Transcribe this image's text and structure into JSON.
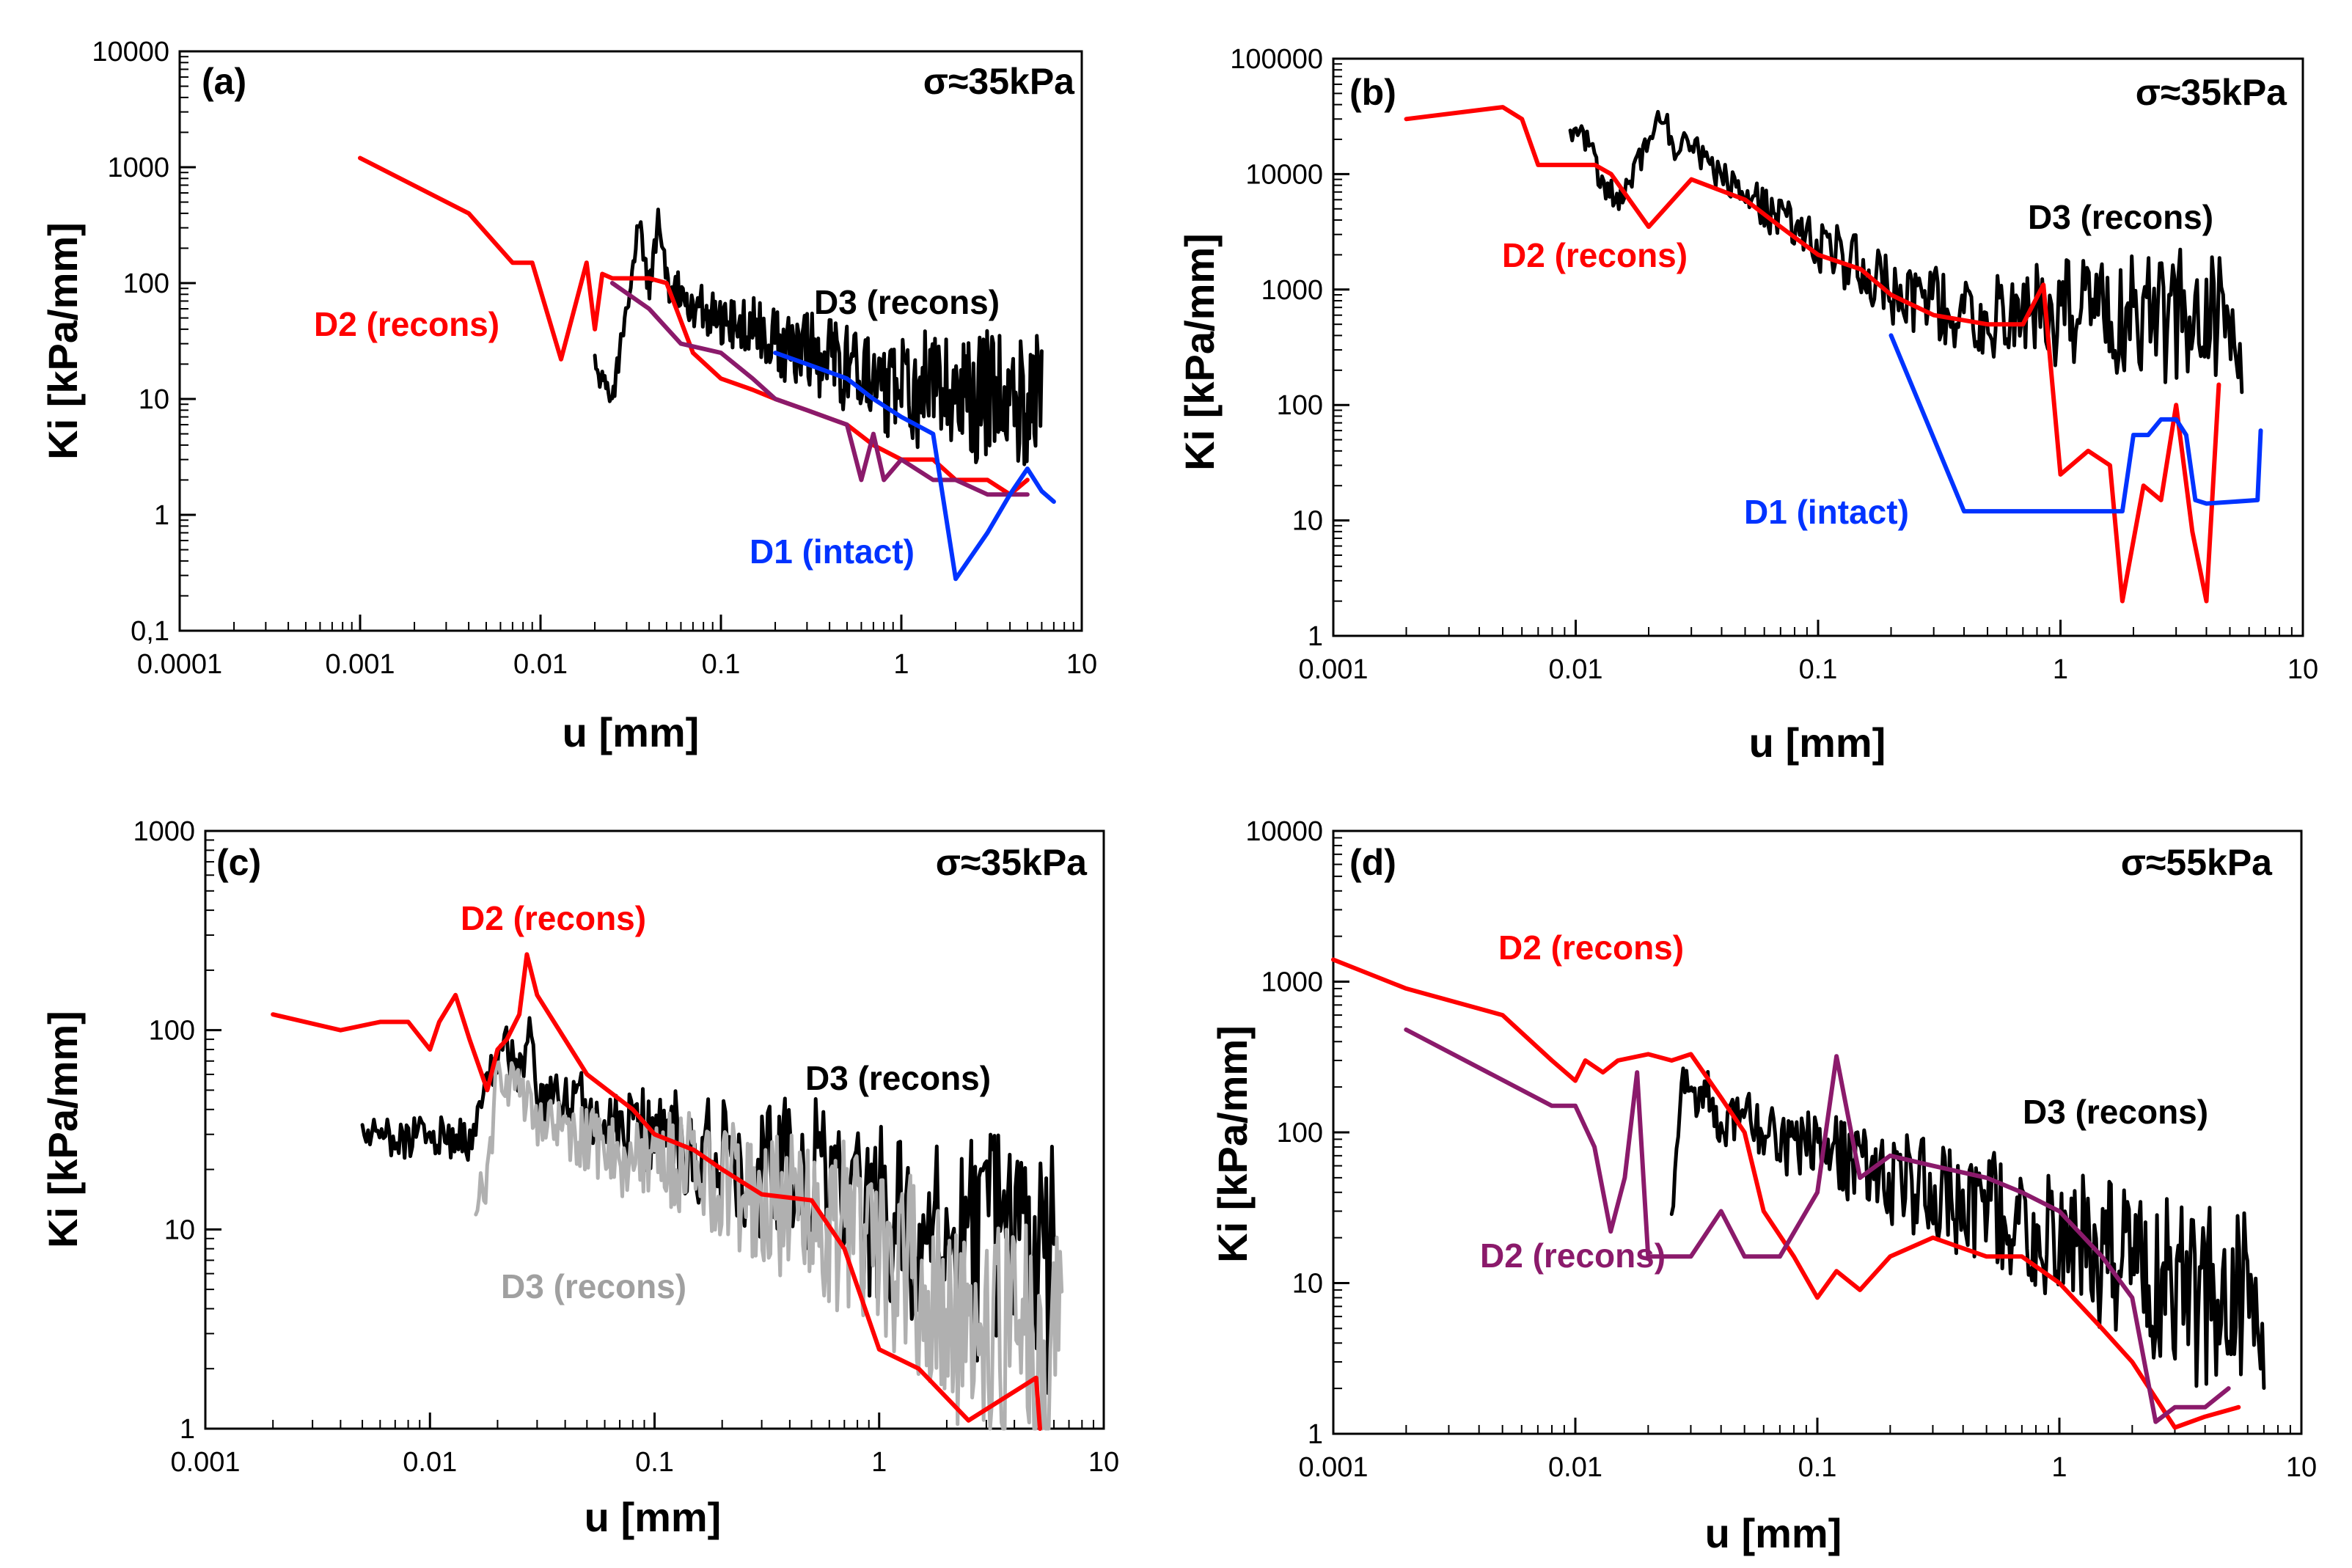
{
  "chart_data": [
    {
      "type": "line",
      "panel": "(a)",
      "annotation": "σ≈35kPa",
      "xlabel": "u [mm]",
      "ylabel": "Ki [kPa/mm]",
      "xscale": "log",
      "yscale": "log",
      "xlim": [
        0.0001,
        10
      ],
      "ylim": [
        0.1,
        10000
      ],
      "x_tick_labels": [
        "0.0001",
        "0.001",
        "0.01",
        "0.1",
        "1",
        "10"
      ],
      "y_tick_labels": [
        "0,1",
        "1",
        "10",
        "100",
        "1000",
        "10000"
      ],
      "series": [
        {
          "name": "D3 (recons)",
          "color": "#000000",
          "noisy": true,
          "x": [
            0.02,
            0.025,
            0.03,
            0.035,
            0.04,
            0.045,
            0.05,
            0.06,
            0.08,
            0.1,
            0.15,
            0.2,
            0.3,
            0.5,
            0.7,
            1,
            1.5,
            2,
            3,
            4,
            5,
            6
          ],
          "y": [
            20,
            9,
            60,
            350,
            80,
            350,
            100,
            80,
            60,
            50,
            40,
            30,
            25,
            18,
            15,
            12,
            12,
            10,
            10,
            10,
            10,
            9
          ]
        },
        {
          "name": "D2 (recons)",
          "color": "#ff0000",
          "x": [
            0.001,
            0.004,
            0.007,
            0.009,
            0.013,
            0.018,
            0.02,
            0.022,
            0.025,
            0.03,
            0.04,
            0.05,
            0.07,
            0.1,
            0.15,
            0.2,
            0.3,
            0.5,
            0.7,
            1,
            1.5,
            2,
            3,
            4,
            5
          ],
          "y": [
            1200,
            400,
            150,
            150,
            22,
            150,
            40,
            120,
            110,
            110,
            110,
            100,
            25,
            15,
            12,
            10,
            8,
            6,
            4,
            3,
            3,
            2,
            2,
            1.5,
            2
          ]
        },
        {
          "name": "D2 (recons)",
          "color": "#8b1a6b",
          "x": [
            0.025,
            0.04,
            0.06,
            0.1,
            0.15,
            0.2,
            0.3,
            0.5,
            0.6,
            0.7,
            0.8,
            1,
            1.5,
            2,
            3,
            4,
            5
          ],
          "y": [
            100,
            60,
            30,
            25,
            15,
            10,
            8,
            6,
            2,
            5,
            2,
            3,
            2,
            2,
            1.5,
            1.5,
            1.5
          ]
        },
        {
          "name": "D1 (intact)",
          "color": "#0033ff",
          "x": [
            0.2,
            0.3,
            0.5,
            0.7,
            1,
            1.5,
            2,
            3,
            4,
            5,
            6,
            7
          ],
          "y": [
            25,
            20,
            15,
            10,
            7,
            5,
            0.28,
            0.7,
            1.5,
            2.5,
            1.6,
            1.3
          ]
        }
      ],
      "labels": [
        {
          "text": "D3 (recons)",
          "color": "#000000"
        },
        {
          "text": "D2 (recons)",
          "color": "#ff0000"
        },
        {
          "text": "D1 (intact)",
          "color": "#0033ff"
        }
      ]
    },
    {
      "type": "line",
      "panel": "(b)",
      "annotation": "σ≈35kPa",
      "xlabel": "u [mm]",
      "ylabel": "Ki [kPa/mm]",
      "xscale": "log",
      "yscale": "log",
      "xlim": [
        0.001,
        10
      ],
      "ylim": [
        1,
        100000
      ],
      "x_tick_labels": [
        "0.001",
        "0.01",
        "0.1",
        "1",
        "10"
      ],
      "y_tick_labels": [
        "1",
        "10",
        "100",
        "1000",
        "10000",
        "100000"
      ],
      "series": [
        {
          "name": "D3 (recons)",
          "color": "#000000",
          "noisy": true,
          "x": [
            0.0095,
            0.011,
            0.013,
            0.015,
            0.018,
            0.02,
            0.023,
            0.026,
            0.03,
            0.035,
            0.04,
            0.06,
            0.08,
            0.1,
            0.15,
            0.2,
            0.3,
            0.5,
            0.7,
            1,
            1.5,
            2,
            3,
            4,
            5,
            5.6
          ],
          "y": [
            25000,
            20000,
            8000,
            6000,
            12000,
            20000,
            35000,
            15000,
            20000,
            12000,
            9000,
            5000,
            3500,
            2500,
            1500,
            1000,
            700,
            600,
            600,
            600,
            600,
            600,
            600,
            600,
            500,
            500
          ]
        },
        {
          "name": "D2 (recons)",
          "color": "#ff0000",
          "x": [
            0.002,
            0.005,
            0.006,
            0.007,
            0.012,
            0.014,
            0.02,
            0.03,
            0.05,
            0.07,
            0.1,
            0.15,
            0.2,
            0.3,
            0.5,
            0.7,
            0.85,
            1,
            1.3,
            1.6,
            1.8,
            2.2,
            2.6,
            3,
            3.5,
            4,
            4.5
          ],
          "y": [
            30000,
            38000,
            30000,
            12000,
            12000,
            10000,
            3500,
            9000,
            6000,
            3500,
            2000,
            1500,
            900,
            600,
            500,
            500,
            1100,
            25,
            40,
            30,
            2,
            20,
            15,
            100,
            8,
            2,
            150
          ]
        },
        {
          "name": "D1 (intact)",
          "color": "#0033ff",
          "x": [
            0.2,
            0.4,
            1.8,
            2.0,
            2.3,
            2.6,
            3.0,
            3.3,
            3.6,
            4.0,
            6.5,
            6.7
          ],
          "y": [
            400,
            12,
            12,
            55,
            55,
            75,
            75,
            55,
            15,
            14,
            15,
            60
          ]
        }
      ],
      "labels": [
        {
          "text": "D3 (recons)",
          "color": "#000000"
        },
        {
          "text": "D2 (recons)",
          "color": "#ff0000"
        },
        {
          "text": "D1 (intact)",
          "color": "#0033ff"
        }
      ]
    },
    {
      "type": "line",
      "panel": "(c)",
      "annotation": "σ≈35kPa",
      "xlabel": "u [mm]",
      "ylabel": "Ki [kPa/mm]",
      "xscale": "log",
      "yscale": "log",
      "xlim": [
        0.001,
        10
      ],
      "ylim": [
        1,
        1000
      ],
      "x_tick_labels": [
        "0.001",
        "0.01",
        "0.1",
        "1",
        "10"
      ],
      "y_tick_labels": [
        "1",
        "10",
        "100",
        "1000"
      ],
      "series": [
        {
          "name": "D3 (recons)",
          "color": "#000000",
          "noisy": true,
          "x": [
            0.005,
            0.015,
            0.02,
            0.022,
            0.025,
            0.028,
            0.03,
            0.04,
            0.05,
            0.07,
            0.1,
            0.15,
            0.2,
            0.3,
            0.5,
            0.7,
            1,
            1.5,
            2,
            3,
            4,
            5,
            6
          ],
          "y": [
            28,
            28,
            70,
            80,
            60,
            95,
            40,
            50,
            40,
            35,
            30,
            25,
            22,
            20,
            18,
            15,
            12,
            10,
            9,
            8,
            7,
            6,
            6
          ]
        },
        {
          "name": "D3 (recons)",
          "color": "#b0b0b0",
          "noisy": true,
          "x": [
            0.016,
            0.018,
            0.02,
            0.025,
            0.03,
            0.05,
            0.08,
            0.1,
            0.15,
            0.2,
            0.3,
            0.5,
            0.7,
            1,
            1.5,
            2,
            3,
            4,
            5,
            6.5
          ],
          "y": [
            14,
            18,
            60,
            50,
            35,
            28,
            22,
            25,
            20,
            18,
            15,
            12,
            10,
            8,
            6,
            4,
            3,
            3,
            3,
            3
          ]
        },
        {
          "name": "D2 (recons)",
          "color": "#ff0000",
          "x": [
            0.002,
            0.004,
            0.006,
            0.008,
            0.01,
            0.011,
            0.013,
            0.015,
            0.018,
            0.02,
            0.022,
            0.025,
            0.027,
            0.03,
            0.05,
            0.08,
            0.1,
            0.15,
            0.2,
            0.3,
            0.5,
            0.7,
            1,
            1.5,
            2.5,
            5,
            5.2
          ],
          "y": [
            120,
            100,
            110,
            110,
            80,
            110,
            150,
            90,
            50,
            80,
            90,
            120,
            240,
            150,
            60,
            40,
            30,
            25,
            20,
            15,
            14,
            8,
            2.5,
            2,
            1.1,
            1.8,
            1
          ]
        }
      ],
      "labels": [
        {
          "text": "D2 (recons)",
          "color": "#ff0000"
        },
        {
          "text": "D3 (recons)",
          "color": "#000000"
        },
        {
          "text": "D3 (recons)",
          "color": "#a0a0a0"
        }
      ]
    },
    {
      "type": "line",
      "panel": "(d)",
      "annotation": "σ≈55kPa",
      "xlabel": "u [mm]",
      "ylabel": "Ki [kPa/mm]",
      "xscale": "log",
      "yscale": "log",
      "xlim": [
        0.001,
        10
      ],
      "ylim": [
        1,
        10000
      ],
      "x_tick_labels": [
        "0.001",
        "0.01",
        "0.1",
        "1",
        "10"
      ],
      "y_tick_labels": [
        "1",
        "10",
        "100",
        "1000",
        "10000"
      ],
      "series": [
        {
          "name": "D3 (recons)",
          "color": "#000000",
          "noisy": true,
          "x": [
            0.025,
            0.028,
            0.03,
            0.035,
            0.04,
            0.05,
            0.06,
            0.08,
            0.1,
            0.15,
            0.2,
            0.3,
            0.5,
            0.7,
            1,
            1.5,
            2,
            3,
            4,
            5,
            6,
            7
          ],
          "y": [
            30,
            250,
            150,
            200,
            100,
            150,
            100,
            80,
            80,
            60,
            50,
            40,
            30,
            25,
            20,
            15,
            12,
            10,
            8,
            8,
            8,
            8
          ]
        },
        {
          "name": "D2 (recons)",
          "color": "#ff0000",
          "x": [
            0.001,
            0.002,
            0.005,
            0.008,
            0.01,
            0.011,
            0.013,
            0.015,
            0.02,
            0.025,
            0.03,
            0.04,
            0.05,
            0.06,
            0.08,
            0.1,
            0.12,
            0.15,
            0.2,
            0.3,
            0.5,
            0.7,
            1,
            1.5,
            2,
            3,
            4,
            5.5
          ],
          "y": [
            1400,
            900,
            600,
            300,
            220,
            300,
            250,
            300,
            330,
            300,
            330,
            170,
            100,
            30,
            15,
            8,
            12,
            9,
            15,
            20,
            15,
            15,
            10,
            5,
            3,
            1.1,
            1.3,
            1.5
          ]
        },
        {
          "name": "D2 (recons)",
          "color": "#8b1a6b",
          "x": [
            0.002,
            0.008,
            0.01,
            0.012,
            0.014,
            0.016,
            0.018,
            0.02,
            0.025,
            0.03,
            0.04,
            0.05,
            0.07,
            0.1,
            0.12,
            0.15,
            0.2,
            0.3,
            0.5,
            0.7,
            1,
            1.5,
            2,
            2.5,
            3,
            4,
            5
          ],
          "y": [
            480,
            150,
            150,
            80,
            22,
            50,
            250,
            15,
            15,
            15,
            30,
            15,
            15,
            40,
            320,
            50,
            70,
            60,
            50,
            40,
            30,
            15,
            8,
            1.2,
            1.5,
            1.5,
            2
          ]
        }
      ],
      "labels": [
        {
          "text": "D2 (recons)",
          "color": "#ff0000"
        },
        {
          "text": "D3 (recons)",
          "color": "#000000"
        },
        {
          "text": "D2 (recons)",
          "color": "#8b1a6b"
        }
      ]
    }
  ]
}
